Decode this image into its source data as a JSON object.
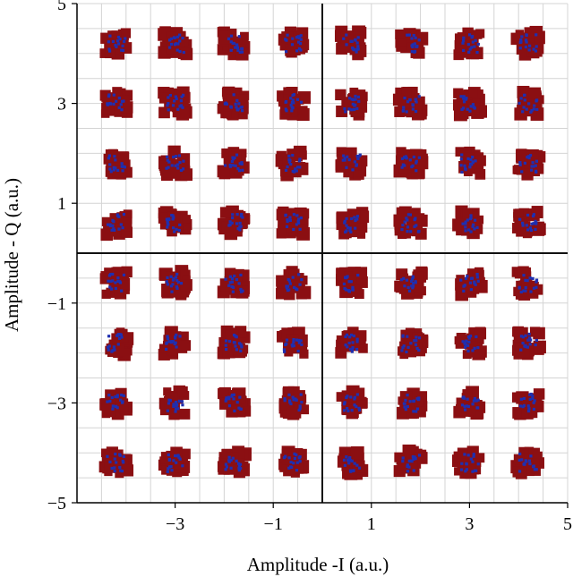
{
  "chart_data": {
    "type": "scatter",
    "title": "",
    "xlabel": "Amplitude -I (a.u.)",
    "ylabel": "Amplitude - Q (a.u.)",
    "xlim": [
      -5,
      5
    ],
    "ylim": [
      -5,
      5
    ],
    "xticks": [
      "−3",
      "−1",
      "1",
      "3",
      "5"
    ],
    "xtick_values": [
      -3,
      -1,
      1,
      3,
      5
    ],
    "yticks": [
      "5",
      "3",
      "1",
      "−1",
      "−3",
      "−5"
    ],
    "ytick_values": [
      5,
      3,
      1,
      -1,
      -3,
      -5
    ],
    "grid": true,
    "minor_grid_step": 0.5,
    "zero_axes": true,
    "constellation_x": [
      -4.2,
      -3.0,
      -1.8,
      -0.6,
      0.6,
      1.8,
      3.0,
      4.2
    ],
    "constellation_y": [
      4.2,
      3.0,
      1.8,
      0.6,
      -0.6,
      -1.8,
      -3.0,
      -4.2
    ],
    "cluster_colors": {
      "outer": "#8b0f12",
      "inner": "#1f2fb0"
    }
  }
}
